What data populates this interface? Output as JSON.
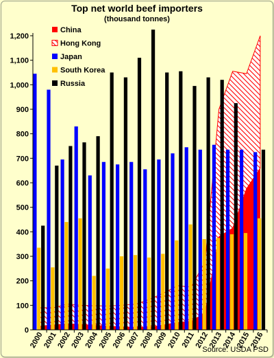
{
  "chart_data": {
    "type": "bar",
    "title": "Top net world beef importers",
    "subtitle": "(thousand tonnes)",
    "source": "Source: USDA PSD",
    "categories": [
      "2000",
      "2001",
      "2002",
      "2003",
      "2004",
      "2005",
      "2006",
      "2007",
      "2008",
      "2009",
      "2010",
      "2011",
      "2012",
      "2013",
      "2014",
      "2015",
      "2016"
    ],
    "ylim": [
      0,
      1200
    ],
    "yticks": [
      "0",
      "100",
      "200",
      "300",
      "400",
      "500",
      "600",
      "700",
      "800",
      "900",
      "1,000",
      "1,100",
      "1,200"
    ],
    "legend_position": "top-left",
    "series": [
      {
        "name": "China",
        "kind": "area",
        "color": "#ff0000",
        "values": [
          15,
          20,
          25,
          22,
          18,
          15,
          12,
          10,
          10,
          20,
          30,
          35,
          70,
          380,
          415,
          575,
          660
        ]
      },
      {
        "name": "Hong Kong",
        "kind": "area",
        "stacked": true,
        "color": "#ff0000",
        "pattern": "hatch",
        "values": [
          75,
          70,
          80,
          78,
          80,
          82,
          88,
          95,
          115,
          130,
          150,
          140,
          210,
          520,
          640,
          470,
          540
        ]
      },
      {
        "name": "Japan",
        "kind": "bar",
        "color": "#0000ff",
        "values": [
          1045,
          980,
          695,
          830,
          630,
          685,
          675,
          685,
          655,
          695,
          720,
          745,
          735,
          755,
          735,
          735,
          725
        ]
      },
      {
        "name": "South Korea",
        "kind": "bar",
        "color": "#ffc000",
        "values": [
          335,
          255,
          440,
          455,
          220,
          250,
          300,
          305,
          295,
          310,
          365,
          430,
          370,
          375,
          390,
          395,
          455
        ]
      },
      {
        "name": "Russia",
        "kind": "bar",
        "color": "#000000",
        "values": [
          425,
          670,
          750,
          765,
          790,
          1050,
          1030,
          1110,
          1225,
          1050,
          1055,
          995,
          1030,
          1020,
          925,
          0,
          735
        ]
      }
    ],
    "grid": false
  }
}
